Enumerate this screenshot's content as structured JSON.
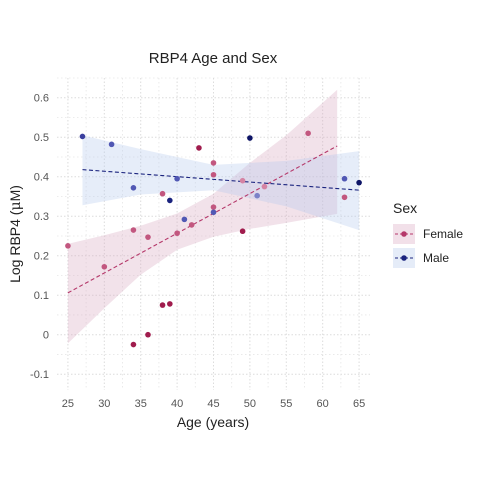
{
  "chart_data": {
    "type": "scatter",
    "title": "RBP4 Age and Sex",
    "xlabel": "Age (years)",
    "ylabel_prefix": "Log RBP4 (",
    "ylabel_mu": "μ",
    "ylabel_suffix": "M)",
    "xlim": [
      23.5,
      66.5
    ],
    "ylim": [
      -0.14,
      0.65
    ],
    "x_ticks": [
      25,
      30,
      35,
      40,
      45,
      50,
      55,
      60,
      65
    ],
    "y_ticks": [
      -0.1,
      0,
      0.1,
      0.2,
      0.3,
      0.4,
      0.5,
      0.6
    ],
    "x_tick_labels": [
      "25",
      "30",
      "35",
      "40",
      "45",
      "50",
      "55",
      "60",
      "65"
    ],
    "y_tick_labels": [
      "-0.1",
      "0",
      "0.1",
      "0.2",
      "0.3",
      "0.4",
      "0.5",
      "0.6"
    ],
    "grid": true,
    "legend": {
      "title": "Sex",
      "position": "right"
    },
    "series": [
      {
        "name": "Female",
        "color": "#b5386a",
        "band_color": "#d9a7c0",
        "fit": {
          "x": [
            25,
            62
          ],
          "y": [
            0.106,
            0.478
          ]
        },
        "band": {
          "x": [
            25,
            30,
            35,
            40,
            45,
            50,
            55,
            62
          ],
          "upper": [
            0.23,
            0.252,
            0.276,
            0.307,
            0.357,
            0.435,
            0.505,
            0.62
          ],
          "lower": [
            -0.022,
            0.067,
            0.152,
            0.215,
            0.248,
            0.268,
            0.283,
            0.306
          ]
        },
        "points": [
          {
            "x": 25,
            "y": 0.225,
            "shade": "#c2577f"
          },
          {
            "x": 30,
            "y": 0.172,
            "shade": "#c2577f"
          },
          {
            "x": 34,
            "y": 0.265,
            "shade": "#c2577f"
          },
          {
            "x": 34,
            "y": -0.025,
            "shade": "#a01c4d"
          },
          {
            "x": 36,
            "y": 0.247,
            "shade": "#c2577f"
          },
          {
            "x": 36,
            "y": 0.0,
            "shade": "#a01c4d"
          },
          {
            "x": 38,
            "y": 0.357,
            "shade": "#c2577f"
          },
          {
            "x": 38,
            "y": 0.075,
            "shade": "#a01c4d"
          },
          {
            "x": 39,
            "y": 0.078,
            "shade": "#a01c4d"
          },
          {
            "x": 40,
            "y": 0.257,
            "shade": "#c2577f"
          },
          {
            "x": 42,
            "y": 0.278,
            "shade": "#c2577f"
          },
          {
            "x": 43,
            "y": 0.473,
            "shade": "#a01c4d"
          },
          {
            "x": 45,
            "y": 0.435,
            "shade": "#c2577f"
          },
          {
            "x": 45,
            "y": 0.405,
            "shade": "#c2577f"
          },
          {
            "x": 45,
            "y": 0.323,
            "shade": "#c2577f"
          },
          {
            "x": 49,
            "y": 0.262,
            "shade": "#a01c4d"
          },
          {
            "x": 49,
            "y": 0.39,
            "shade": "#d583a3"
          },
          {
            "x": 52,
            "y": 0.375,
            "shade": "#d583a3"
          },
          {
            "x": 58,
            "y": 0.51,
            "shade": "#c2577f"
          },
          {
            "x": 63,
            "y": 0.348,
            "shade": "#c2577f"
          }
        ]
      },
      {
        "name": "Male",
        "color": "#1a237e",
        "band_color": "#b4c8ec",
        "fit": {
          "x": [
            27,
            65
          ],
          "y": [
            0.418,
            0.366
          ]
        },
        "band": {
          "x": [
            27,
            35,
            45,
            55,
            65
          ],
          "upper": [
            0.505,
            0.47,
            0.43,
            0.44,
            0.465
          ],
          "lower": [
            0.328,
            0.355,
            0.366,
            0.325,
            0.265
          ]
        },
        "points": [
          {
            "x": 27,
            "y": 0.502,
            "shade": "#3a3f9e"
          },
          {
            "x": 31,
            "y": 0.482,
            "shade": "#5158b4"
          },
          {
            "x": 34,
            "y": 0.372,
            "shade": "#5158b4"
          },
          {
            "x": 39,
            "y": 0.34,
            "shade": "#1a237e"
          },
          {
            "x": 40,
            "y": 0.395,
            "shade": "#5158b4"
          },
          {
            "x": 41,
            "y": 0.292,
            "shade": "#5158b4"
          },
          {
            "x": 45,
            "y": 0.31,
            "shade": "#5158b4"
          },
          {
            "x": 50,
            "y": 0.498,
            "shade": "#0d1466"
          },
          {
            "x": 51,
            "y": 0.352,
            "shade": "#7b82c8"
          },
          {
            "x": 63,
            "y": 0.395,
            "shade": "#5158b4"
          },
          {
            "x": 65,
            "y": 0.385,
            "shade": "#0d1466"
          }
        ]
      }
    ]
  }
}
